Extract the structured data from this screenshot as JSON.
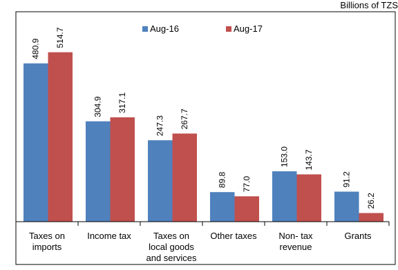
{
  "unit_label": "Billions of TZS",
  "legend": {
    "position": "top",
    "items": [
      {
        "name": "Aug-16",
        "color": "#4F81BD"
      },
      {
        "name": "Aug-17",
        "color": "#C0504D"
      }
    ]
  },
  "chart_data": {
    "type": "bar",
    "categories": [
      [
        "Taxes on",
        "imports"
      ],
      [
        "Income tax"
      ],
      [
        "Taxes on",
        "local goods",
        "and services"
      ],
      [
        "Other taxes"
      ],
      [
        "Non- tax",
        "revenue"
      ],
      [
        "Grants"
      ]
    ],
    "series": [
      {
        "name": "Aug-16",
        "color": "#4F81BD",
        "values": [
          480.9,
          304.9,
          247.3,
          89.8,
          153.0,
          91.2
        ],
        "labels": [
          "480.9",
          "304.9",
          "247.3",
          "89.8",
          "153.0",
          "91.2"
        ]
      },
      {
        "name": "Aug-17",
        "color": "#C0504D",
        "values": [
          514.7,
          317.1,
          267.7,
          77.0,
          143.7,
          26.2
        ],
        "labels": [
          "514.7",
          "317.1",
          "267.7",
          "77.0",
          "143.7",
          "26.2"
        ]
      }
    ],
    "ylim": [
      0,
      600
    ],
    "y_axis_visible": false,
    "grid": false,
    "data_labels": "vertical, above bars"
  }
}
